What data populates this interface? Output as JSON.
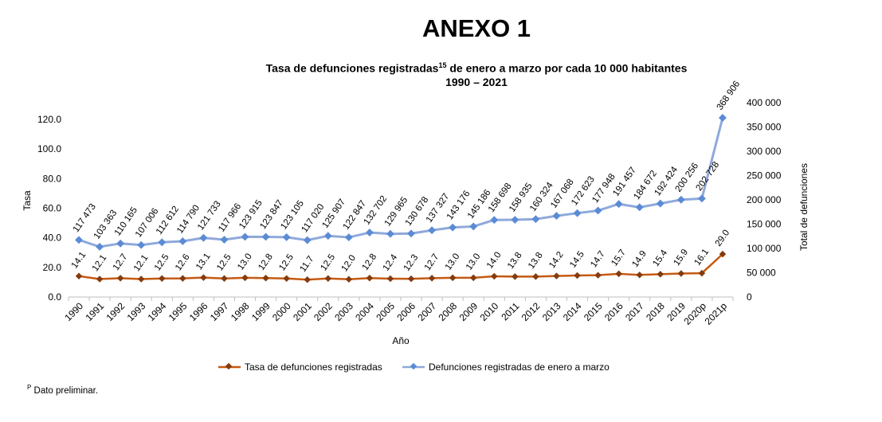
{
  "annex_title": "ANEXO 1",
  "chart_title_main": "Tasa de defunciones registradas",
  "chart_title_sup": "15",
  "chart_title_rest": " de enero a marzo por cada 10 000 habitantes",
  "chart_subtitle": "1990 – 2021",
  "footnote_sup": "P",
  "footnote_text": " Dato preliminar.",
  "colors": {
    "rate": "#c55a11",
    "deaths": "#8fa9db",
    "deaths_marker": "#5b8bd5"
  },
  "chart_data": {
    "type": "line",
    "xlabel": "Año",
    "ylabel_left": "Tasa",
    "ylabel_right": "Total de defunciones",
    "ylim_left": [
      0,
      120
    ],
    "ylim_right": [
      0,
      400000
    ],
    "left_ticks": [
      "0.0",
      "20.0",
      "40.0",
      "60.0",
      "80.0",
      "100.0",
      "120.0"
    ],
    "right_ticks": [
      "0",
      "50 000",
      "100 000",
      "150 000",
      "200 000",
      "250 000",
      "300 000",
      "350 000",
      "400 000"
    ],
    "grid": false,
    "legend_position": "bottom",
    "categories": [
      "1990",
      "1991",
      "1992",
      "1993",
      "1994",
      "1995",
      "1996",
      "1997",
      "1998",
      "1999",
      "2000",
      "2001",
      "2002",
      "2003",
      "2004",
      "2005",
      "2006",
      "2007",
      "2008",
      "2009",
      "2010",
      "2011",
      "2012",
      "2013",
      "2014",
      "2015",
      "2016",
      "2017",
      "2018",
      "2019",
      "2020p",
      "2021p"
    ],
    "series": [
      {
        "name": "Tasa de defunciones registradas",
        "axis": "left",
        "values": [
          14.1,
          12.1,
          12.7,
          12.1,
          12.5,
          12.6,
          13.1,
          12.5,
          13.0,
          12.8,
          12.5,
          11.7,
          12.5,
          12.0,
          12.8,
          12.4,
          12.3,
          12.7,
          13.0,
          13.0,
          14.0,
          13.8,
          13.8,
          14.2,
          14.5,
          14.7,
          15.7,
          14.9,
          15.4,
          15.9,
          16.1,
          29.0
        ],
        "labels": [
          "14.1",
          "12.1",
          "12.7",
          "12.1",
          "12.5",
          "12.6",
          "13.1",
          "12.5",
          "13.0",
          "12.8",
          "12.5",
          "11.7",
          "12.5",
          "12.0",
          "12.8",
          "12.4",
          "12.3",
          "12.7",
          "13.0",
          "13.0",
          "14.0",
          "13.8",
          "13.8",
          "14.2",
          "14.5",
          "14.7",
          "15.7",
          "14.9",
          "15.4",
          "15.9",
          "16.1",
          "29.0"
        ]
      },
      {
        "name": "Defunciones registradas de enero a marzo",
        "axis": "right",
        "values": [
          117473,
          103363,
          110165,
          107006,
          112612,
          114790,
          121733,
          117966,
          123915,
          123847,
          123105,
          117020,
          125907,
          122847,
          132702,
          129965,
          130678,
          137327,
          143176,
          145186,
          158698,
          158935,
          160324,
          167068,
          172623,
          177948,
          191457,
          184672,
          192424,
          200256,
          202728,
          368906
        ],
        "labels": [
          "117 473",
          "103 363",
          "110 165",
          "107 006",
          "112 612",
          "114 790",
          "121 733",
          "117 966",
          "123 915",
          "123 847",
          "123 105",
          "117 020",
          "125 907",
          "122 847",
          "132 702",
          "129 965",
          "130 678",
          "137 327",
          "143 176",
          "145 186",
          "158 698",
          "158 935",
          "160 324",
          "167 068",
          "172 623",
          "177 948",
          "191 457",
          "184 672",
          "192 424",
          "200 256",
          "202 728",
          "368 906"
        ]
      }
    ]
  }
}
